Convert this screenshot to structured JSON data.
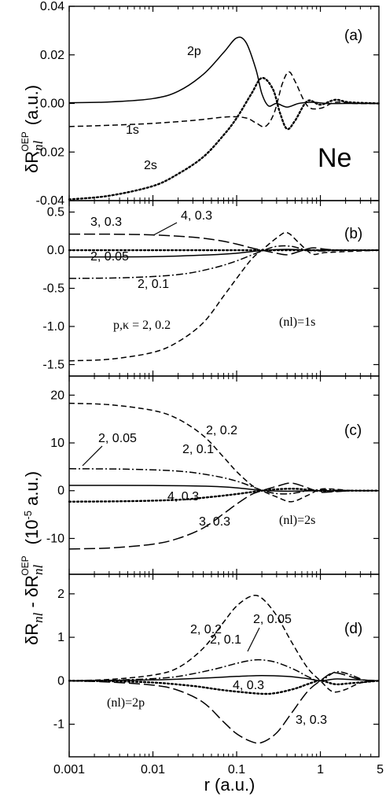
{
  "figure": {
    "xlabel": "r  (a.u.)",
    "ylabel_a": "δR",
    "ylabel_a_sub": "nl",
    "ylabel_a_sup": "OEP",
    "ylabel_a_unit": "(a.u.)",
    "ylabel_bcd_main": "δR",
    "ylabel_bcd_sub": "nl",
    "ylabel_bcd_minus": " - δR",
    "ylabel_bcd_sub2": "nl",
    "ylabel_bcd_sup2": "OEP",
    "ylabel_bcd_unit": "(10",
    "ylabel_bcd_exp": "-5",
    "ylabel_bcd_unit2": " a.u.)",
    "xticks": [
      "0.001",
      "0.01",
      "0.1",
      "1",
      "5"
    ]
  },
  "chart_data": [
    {
      "panel": "(a)",
      "type": "line",
      "xscale": "log",
      "xlim": [
        0.001,
        5
      ],
      "ylim": [
        -0.04,
        0.04
      ],
      "yticks": [
        "0.04",
        "0.02",
        "0.00",
        "-0.02",
        "-0.04"
      ],
      "annotation": "Ne",
      "series": [
        {
          "name": "2p",
          "style": "solid",
          "x": [
            0.001,
            0.003,
            0.01,
            0.02,
            0.04,
            0.07,
            0.1,
            0.13,
            0.17,
            0.2,
            0.24,
            0.3,
            0.4,
            0.55,
            0.8,
            1.2,
            2,
            5
          ],
          "y": [
            0.0003,
            0.0006,
            0.002,
            0.005,
            0.012,
            0.021,
            0.027,
            0.025,
            0.014,
            0.004,
            -0.001,
            0.0,
            -0.0015,
            0.0,
            0.0005,
            0.0,
            0.0,
            0.0
          ]
        },
        {
          "name": "1s",
          "style": "dashed",
          "x": [
            0.001,
            0.003,
            0.01,
            0.03,
            0.08,
            0.13,
            0.17,
            0.22,
            0.28,
            0.35,
            0.42,
            0.5,
            0.7,
            1.0,
            1.5,
            2.5,
            5
          ],
          "y": [
            -0.0095,
            -0.009,
            -0.0082,
            -0.007,
            -0.0055,
            -0.006,
            -0.008,
            -0.0095,
            -0.004,
            0.008,
            0.013,
            0.009,
            -0.001,
            -0.002,
            0.0005,
            0.0,
            0.0
          ]
        },
        {
          "name": "2s",
          "style": "dotted",
          "x": [
            0.001,
            0.003,
            0.01,
            0.02,
            0.04,
            0.07,
            0.1,
            0.15,
            0.2,
            0.27,
            0.33,
            0.4,
            0.5,
            0.7,
            1.0,
            1.5,
            2.2,
            5
          ],
          "y": [
            -0.0395,
            -0.038,
            -0.034,
            -0.029,
            -0.022,
            -0.013,
            -0.006,
            0.004,
            0.0105,
            0.006,
            -0.004,
            -0.0105,
            -0.007,
            0.001,
            -0.0005,
            0.0015,
            0.0005,
            0.0
          ]
        }
      ],
      "labels": [
        "2p",
        "1s",
        "2s"
      ]
    },
    {
      "panel": "(b)",
      "type": "line",
      "xscale": "log",
      "xlim": [
        0.001,
        5
      ],
      "ylim": [
        -1.65,
        0.65
      ],
      "yticks": [
        "0.5",
        "0.0",
        "-0.5",
        "-1.0",
        "-1.5"
      ],
      "ytick_values": [
        0.5,
        0.0,
        -0.5,
        -1.0,
        -1.5
      ],
      "nl_label": "(nl)=1s",
      "series": [
        {
          "name": "2, 0.05",
          "style": "solid",
          "x": [
            0.001,
            0.01,
            0.05,
            0.1,
            0.2,
            0.4,
            1,
            5
          ],
          "y": [
            -0.09,
            -0.085,
            -0.06,
            -0.04,
            -0.005,
            0.01,
            0.0,
            0.0
          ]
        },
        {
          "name": "2, 0.1",
          "style": "dashdot",
          "x": [
            0.001,
            0.005,
            0.02,
            0.05,
            0.1,
            0.2,
            0.3,
            0.45,
            0.7,
            1,
            2,
            5
          ],
          "y": [
            -0.37,
            -0.36,
            -0.32,
            -0.24,
            -0.14,
            -0.01,
            0.05,
            0.05,
            0.0,
            -0.01,
            0.0,
            0.0
          ]
        },
        {
          "name": "2, 0.2",
          "style": "dashed",
          "x": [
            0.001,
            0.003,
            0.01,
            0.02,
            0.04,
            0.07,
            0.1,
            0.15,
            0.2,
            0.3,
            0.4,
            0.55,
            0.8,
            1.2,
            5
          ],
          "y": [
            -1.45,
            -1.43,
            -1.34,
            -1.2,
            -0.95,
            -0.6,
            -0.37,
            -0.12,
            0.0,
            0.16,
            0.23,
            0.1,
            -0.05,
            -0.03,
            0.0
          ]
        },
        {
          "name": "3, 0.3",
          "style": "dotted",
          "x": [
            0.001,
            0.01,
            0.05,
            0.1,
            0.2,
            0.4,
            1,
            5
          ],
          "y": [
            0.0,
            0.0,
            0.0,
            0.0,
            0.0,
            0.0,
            0.0,
            0.0
          ]
        },
        {
          "name": "4, 0.3",
          "style": "longdash",
          "x": [
            0.001,
            0.003,
            0.01,
            0.03,
            0.06,
            0.1,
            0.15,
            0.2,
            0.3,
            0.4,
            0.55,
            0.8,
            1.2,
            2,
            5
          ],
          "y": [
            0.21,
            0.21,
            0.2,
            0.17,
            0.13,
            0.08,
            0.03,
            0.0,
            -0.04,
            -0.06,
            -0.02,
            0.03,
            0.01,
            0.0,
            0.0
          ]
        }
      ],
      "labels": [
        "3, 0.3",
        "4, 0.3",
        "2, 0.05",
        "2, 0.1",
        "p,κ = 2, 0.2"
      ]
    },
    {
      "panel": "(c)",
      "type": "line",
      "xscale": "log",
      "xlim": [
        0.001,
        5
      ],
      "ylim": [
        -17.5,
        24
      ],
      "yticks": [
        "20",
        "10",
        "0",
        "-10"
      ],
      "ytick_values": [
        20,
        10,
        0,
        -10
      ],
      "nl_label": "(nl)=2s",
      "series": [
        {
          "name": "2, 0.2",
          "style": "dashed",
          "x": [
            0.001,
            0.003,
            0.01,
            0.02,
            0.04,
            0.07,
            0.1,
            0.15,
            0.2,
            0.3,
            0.45,
            0.7,
            1.0,
            1.5,
            2.5,
            5
          ],
          "y": [
            18.3,
            18.0,
            16.8,
            15.0,
            11.5,
            7.0,
            4.0,
            1.2,
            0.0,
            -1.3,
            -2.3,
            -1.0,
            0.3,
            0.3,
            0.0,
            0.0
          ]
        },
        {
          "name": "2, 0.1",
          "style": "dashdot",
          "x": [
            0.001,
            0.005,
            0.02,
            0.05,
            0.1,
            0.2,
            0.3,
            0.45,
            0.7,
            1.0,
            1.5,
            2.5,
            5
          ],
          "y": [
            4.6,
            4.5,
            4.1,
            3.2,
            2.0,
            0.1,
            -0.6,
            -0.6,
            0.0,
            0.2,
            0.1,
            0.0,
            0.0
          ]
        },
        {
          "name": "2, 0.05",
          "style": "solid",
          "x": [
            0.001,
            0.01,
            0.05,
            0.1,
            0.2,
            0.4,
            1,
            5
          ],
          "y": [
            1.1,
            1.08,
            0.9,
            0.6,
            0.05,
            -0.1,
            0.0,
            0.0
          ]
        },
        {
          "name": "4, 0.3",
          "style": "dotted",
          "x": [
            0.001,
            0.005,
            0.02,
            0.05,
            0.1,
            0.2,
            0.3,
            0.5,
            0.8,
            1.2,
            2,
            5
          ],
          "y": [
            -2.3,
            -2.2,
            -1.9,
            -1.3,
            -0.7,
            0.0,
            0.3,
            0.4,
            0.1,
            -0.1,
            0.0,
            0.0
          ]
        },
        {
          "name": "3, 0.3",
          "style": "longdash",
          "x": [
            0.001,
            0.003,
            0.01,
            0.02,
            0.04,
            0.07,
            0.1,
            0.15,
            0.2,
            0.3,
            0.45,
            0.7,
            1.0,
            1.5,
            2.5,
            5
          ],
          "y": [
            -12.2,
            -12.0,
            -11.2,
            -10.0,
            -7.8,
            -4.8,
            -2.8,
            -0.8,
            0.0,
            0.9,
            1.6,
            0.6,
            -0.3,
            -0.2,
            0.0,
            0.0
          ]
        }
      ],
      "labels": [
        "2, 0.2",
        "2, 0.05",
        "2, 0.1",
        "4, 0.3",
        "3, 0.3"
      ]
    },
    {
      "panel": "(d)",
      "type": "line",
      "xscale": "log",
      "xlim": [
        0.001,
        5
      ],
      "ylim": [
        -1.75,
        2.45
      ],
      "yticks": [
        "2",
        "1",
        "0",
        "-1"
      ],
      "ytick_values": [
        2,
        1,
        0,
        -1
      ],
      "nl_label": "(nl)=2p",
      "series": [
        {
          "name": "2, 0.2",
          "style": "dashed",
          "x": [
            0.001,
            0.003,
            0.01,
            0.02,
            0.04,
            0.07,
            0.1,
            0.15,
            0.2,
            0.3,
            0.45,
            0.7,
            1.0,
            1.4,
            2,
            3,
            5
          ],
          "y": [
            0.0,
            0.03,
            0.13,
            0.3,
            0.75,
            1.35,
            1.72,
            1.95,
            1.9,
            1.5,
            0.9,
            0.3,
            0.0,
            -0.25,
            -0.2,
            -0.05,
            0.0
          ]
        },
        {
          "name": "2, 0.1",
          "style": "dashdot",
          "x": [
            0.001,
            0.003,
            0.01,
            0.02,
            0.05,
            0.1,
            0.15,
            0.2,
            0.3,
            0.5,
            0.7,
            1.0,
            1.5,
            2.2,
            3.5,
            5
          ],
          "y": [
            0.0,
            0.01,
            0.05,
            0.1,
            0.25,
            0.4,
            0.47,
            0.48,
            0.42,
            0.25,
            0.1,
            0.0,
            0.2,
            0.15,
            0.0,
            0.0
          ]
        },
        {
          "name": "2, 0.05",
          "style": "solid",
          "x": [
            0.001,
            0.01,
            0.05,
            0.1,
            0.2,
            0.4,
            0.7,
            1.0,
            1.5,
            2.2,
            5
          ],
          "y": [
            0.0,
            0.02,
            0.07,
            0.1,
            0.12,
            0.1,
            0.05,
            0.0,
            0.04,
            0.03,
            0.0
          ]
        },
        {
          "name": "4, 0.3",
          "style": "dotted",
          "x": [
            0.001,
            0.003,
            0.01,
            0.03,
            0.06,
            0.1,
            0.2,
            0.3,
            0.5,
            0.7,
            1.0,
            1.5,
            2.2,
            5
          ],
          "y": [
            0.0,
            -0.01,
            -0.04,
            -0.12,
            -0.2,
            -0.25,
            -0.3,
            -0.28,
            -0.18,
            -0.08,
            0.0,
            -0.08,
            -0.06,
            0.0
          ]
        },
        {
          "name": "3, 0.3",
          "style": "longdash",
          "x": [
            0.001,
            0.003,
            0.01,
            0.02,
            0.04,
            0.07,
            0.1,
            0.15,
            0.2,
            0.3,
            0.45,
            0.7,
            1.0,
            1.4,
            2,
            3,
            5
          ],
          "y": [
            0.0,
            -0.03,
            -0.1,
            -0.22,
            -0.5,
            -0.95,
            -1.22,
            -1.4,
            -1.42,
            -1.2,
            -0.75,
            -0.25,
            0.0,
            0.18,
            0.13,
            0.03,
            0.0
          ]
        }
      ],
      "labels": [
        "2, 0.2",
        "2, 0.05",
        "2, 0.1",
        "4, 0.3",
        "3, 0.3"
      ]
    }
  ]
}
